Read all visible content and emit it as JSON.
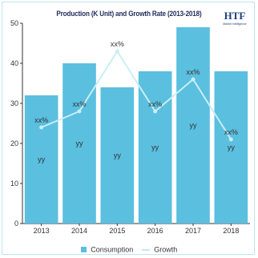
{
  "colors": {
    "bar": "#5bbfdf",
    "line": "#c9eef6",
    "axis": "#333333"
  },
  "logo": {
    "text": "HTF",
    "sub": "Market Intelligence"
  },
  "chart_data": {
    "type": "bar",
    "title": "Production (K Unit) and Growth Rate (2013-2018)",
    "categories": [
      "2013",
      "2014",
      "2015",
      "2016",
      "2017",
      "2018"
    ],
    "ylim": [
      0,
      50
    ],
    "yticks": [
      0,
      10,
      20,
      30,
      40,
      50
    ],
    "series": [
      {
        "name": "Consumption",
        "kind": "bar",
        "values": [
          32,
          40,
          34,
          38,
          49,
          38
        ],
        "label": "yy"
      },
      {
        "name": "Growth",
        "kind": "line",
        "values": [
          24,
          28,
          43,
          28,
          36,
          21
        ],
        "label": "xx%"
      }
    ],
    "legend": "bottom-center",
    "grid": false
  }
}
